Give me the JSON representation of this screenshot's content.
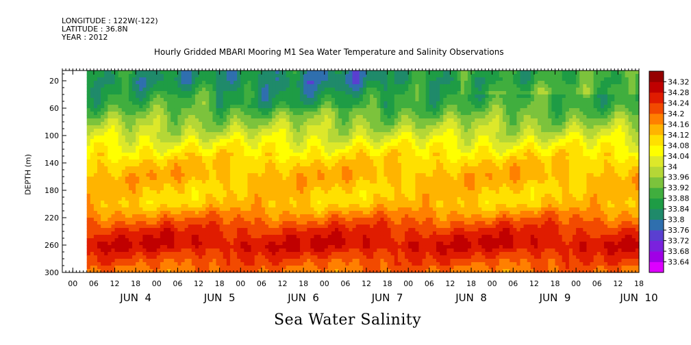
{
  "header": {
    "longitude": "LONGITUDE : 122W(-122)",
    "latitude": "LATITUDE : 36.8N",
    "year": "YEAR : 2012"
  },
  "chart_data": {
    "type": "heatmap",
    "title": "Hourly Gridded MBARI Mooring M1 Sea Water Temperature and Salinity Observations",
    "variable": "Sea Water Salinity",
    "ylabel": "DEPTH (m)",
    "y_ticks": [
      20,
      60,
      100,
      140,
      180,
      220,
      260,
      300
    ],
    "ylim": [
      5,
      300
    ],
    "y_inverted": true,
    "x_hour_ticks": [
      "00",
      "06",
      "12",
      "18",
      "00",
      "06",
      "12",
      "18",
      "00",
      "06",
      "12",
      "18",
      "00",
      "06",
      "12",
      "18",
      "00",
      "06",
      "12",
      "18",
      "00",
      "06",
      "12",
      "18",
      "00",
      "06",
      "12",
      "18"
    ],
    "x_day_labels": [
      "JUN  4",
      "JUN  5",
      "JUN  6",
      "JUN  7",
      "JUN  8",
      "JUN  9",
      "JUN  10"
    ],
    "x_start_hour": -3,
    "x_end_hour": 162,
    "data_start_hour": 4,
    "colorbar": {
      "levels": [
        33.64,
        33.68,
        33.72,
        33.76,
        33.8,
        33.84,
        33.88,
        33.92,
        33.96,
        34,
        34.04,
        34.08,
        34.12,
        34.16,
        34.2,
        34.24,
        34.28,
        34.32
      ],
      "labels": [
        "33.64",
        "33.68",
        "33.72",
        "33.76",
        "33.8",
        "33.84",
        "33.88",
        "33.92",
        "33.96",
        "34",
        "34.04",
        "34.08",
        "34.12",
        "34.16",
        "34.2",
        "34.24",
        "34.28",
        "34.32"
      ],
      "colors": [
        "#dd00ff",
        "#a000e6",
        "#7a22dd",
        "#5a3fd0",
        "#2f6fae",
        "#1f8a6a",
        "#1e9c45",
        "#40ae3e",
        "#7cc33c",
        "#b5d736",
        "#dde82a",
        "#ffff00",
        "#ffe000",
        "#ffb400",
        "#ff8000",
        "#f24a00",
        "#e01c00",
        "#c00000",
        "#960000"
      ]
    },
    "profile": [
      {
        "depth": 5,
        "value": 33.85
      },
      {
        "depth": 20,
        "value": 33.84
      },
      {
        "depth": 40,
        "value": 33.88
      },
      {
        "depth": 60,
        "value": 33.91
      },
      {
        "depth": 80,
        "value": 33.96
      },
      {
        "depth": 100,
        "value": 34.01
      },
      {
        "depth": 120,
        "value": 34.07
      },
      {
        "depth": 140,
        "value": 34.12
      },
      {
        "depth": 160,
        "value": 34.14
      },
      {
        "depth": 180,
        "value": 34.12
      },
      {
        "depth": 200,
        "value": 34.12
      },
      {
        "depth": 220,
        "value": 34.19
      },
      {
        "depth": 240,
        "value": 34.25
      },
      {
        "depth": 260,
        "value": 34.28
      },
      {
        "depth": 280,
        "value": 34.23
      },
      {
        "depth": 300,
        "value": 34.19
      }
    ]
  }
}
